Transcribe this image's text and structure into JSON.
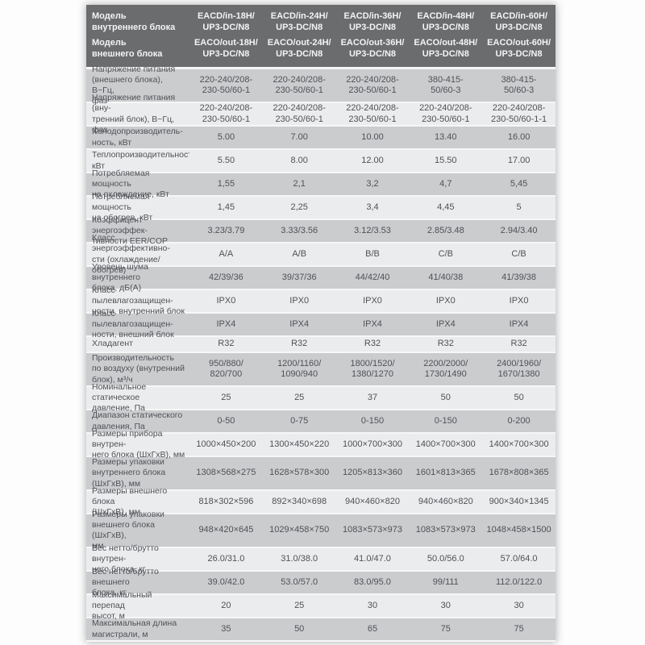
{
  "colors": {
    "page_bg": "#fdfdfd",
    "header_bg": "#6b6c6e",
    "header_fg": "#f4f4f4",
    "row_dark": "#cbccce",
    "row_light": "#ebeced",
    "text": "#505156",
    "separator": "#f7f7f8"
  },
  "table": {
    "header": [
      {
        "label": [
          "Модель",
          "внутреннего блока"
        ],
        "values": [
          [
            "EACD/in-18H/",
            "UP3-DC/N8"
          ],
          [
            "EACD/in-24H/",
            "UP3-DC/N8"
          ],
          [
            "EACD/in-36H/",
            "UP3-DC/N8"
          ],
          [
            "EACD/in-48H/",
            "UP3-DC/N8"
          ],
          [
            "EACD/in-60H/",
            "UP3-DC/N8"
          ]
        ]
      },
      {
        "label": [
          "Модель",
          "внешнего блока"
        ],
        "values": [
          [
            "EACO/out-18H/",
            "UP3-DC/N8"
          ],
          [
            "EACO/out-24H/",
            "UP3-DC/N8"
          ],
          [
            "EACO/out-36H/",
            "UP3-DC/N8"
          ],
          [
            "EACO/out-48H/",
            "UP3-DC/N8"
          ],
          [
            "EACO/out-60H/",
            "UP3-DC/N8"
          ]
        ]
      }
    ],
    "rows": [
      {
        "label": [
          "Напряжение питания",
          "(внешнего блока), В~Гц,",
          "фаз"
        ],
        "lines": 3,
        "values": [
          [
            "220-240/208-",
            "230-50/60-1"
          ],
          [
            "220-240/208-",
            "230-50/60-1"
          ],
          [
            "220-240/208-",
            "230-50/60-1"
          ],
          [
            "380-415-",
            "50/60-3"
          ],
          [
            "380-415-",
            "50/60-3"
          ]
        ]
      },
      {
        "label": [
          "Напряжение питания (вну-",
          "тренний блок), В~Гц, фаз"
        ],
        "lines": 2,
        "values": [
          [
            "220-240/208-",
            "230-50/60-1"
          ],
          [
            "220-240/208-",
            "230-50/60-1"
          ],
          [
            "220-240/208-",
            "230-50/60-1"
          ],
          [
            "220-240/208-",
            "230-50/60-1"
          ],
          [
            "220-240/208-",
            "230-50/60-1-1"
          ]
        ]
      },
      {
        "label": [
          "Холодопроизводитель-",
          "ность, кВт"
        ],
        "lines": 2,
        "values": [
          "5.00",
          "7.00",
          "10.00",
          "13.40",
          "16.00"
        ]
      },
      {
        "label": [
          "Теплопроизводительность,",
          "кВт"
        ],
        "lines": 2,
        "values": [
          "5.50",
          "8.00",
          "12.00",
          "15.50",
          "17.00"
        ]
      },
      {
        "label": [
          "Потребляемая мощность",
          "на охлаждение, кВт"
        ],
        "lines": 2,
        "values": [
          "1,55",
          "2,1",
          "3,2",
          "4,7",
          "5,45"
        ]
      },
      {
        "label": [
          "Потребляемая мощность",
          "на обогрев, кВт"
        ],
        "lines": 2,
        "values": [
          "1,45",
          "2,25",
          "3,4",
          "4,45",
          "5"
        ]
      },
      {
        "label": [
          "Коэффицент энергоэффек-",
          "тивности EER/COP"
        ],
        "lines": 2,
        "values": [
          "3.23/3.79",
          "3.33/3.56",
          "3.12/3.53",
          "2.85/3.48",
          "2.94/3.40"
        ]
      },
      {
        "label": [
          "Класс энергоэффективно-",
          "сти (охлаждение/обогрев)"
        ],
        "lines": 2,
        "values": [
          "A/A",
          "A/B",
          "B/B",
          "C/B",
          "C/B"
        ]
      },
      {
        "label": [
          "Уровень шума внутреннего",
          "блока, дБ(А)"
        ],
        "lines": 2,
        "values": [
          "42/39/36",
          "39/37/36",
          "44/42/40",
          "41/40/38",
          "41/39/38"
        ]
      },
      {
        "label": [
          "Класс пылевлагозащищен-",
          "ности, внутренний блок"
        ],
        "lines": 2,
        "values": [
          "IPX0",
          "IPX0",
          "IPX0",
          "IPX0",
          "IPX0"
        ]
      },
      {
        "label": [
          "Класс пылевлагозащищен-",
          "ности, внешний блок"
        ],
        "lines": 2,
        "values": [
          "IPX4",
          "IPX4",
          "IPX4",
          "IPX4",
          "IPX4"
        ]
      },
      {
        "label": [
          "Хладагент"
        ],
        "lines": 1,
        "values": [
          "R32",
          "R32",
          "R32",
          "R32",
          "R32"
        ]
      },
      {
        "label": [
          "Производительность",
          "по воздуху (внутренний",
          "блок), м³/ч"
        ],
        "lines": 3,
        "values": [
          [
            "950/880/",
            "820/700"
          ],
          [
            "1200/1160/",
            "1090/940"
          ],
          [
            "1800/1520/",
            "1380/1270"
          ],
          [
            "2200/2000/",
            "1730/1490"
          ],
          [
            "2400/1960/",
            "1670/1380"
          ]
        ]
      },
      {
        "label": [
          "Номинальное статическое",
          "давление, Па"
        ],
        "lines": 2,
        "values": [
          "25",
          "25",
          "37",
          "50",
          "50"
        ]
      },
      {
        "label": [
          "Диапазон статического",
          "давления, Па"
        ],
        "lines": 2,
        "values": [
          "0-50",
          "0-75",
          "0-150",
          "0-150",
          "0-200"
        ]
      },
      {
        "label": [
          "Размеры прибора внутрен-",
          "него блока (ШхГхВ), мм"
        ],
        "lines": 2,
        "values": [
          "1000×450×200",
          "1300×450×220",
          "1000×700×300",
          "1400×700×300",
          "1400×700×300"
        ]
      },
      {
        "label": [
          "Размеры упаковки",
          "внутреннего блока",
          "(ШхГхВ), мм"
        ],
        "lines": 3,
        "values": [
          "1308×568×275",
          "1628×578×300",
          "1205×813×360",
          "1601×813×365",
          "1678×808×365"
        ]
      },
      {
        "label": [
          "Размеры внешнего блока",
          "(ШхГхВ), мм"
        ],
        "lines": 2,
        "values": [
          "818×302×596",
          "892×340×698",
          "940×460×820",
          "940×460×820",
          "900×340×1345"
        ]
      },
      {
        "label": [
          "Размеры упаковки",
          "внешнего блока (ШхГхВ),",
          "мм"
        ],
        "lines": 3,
        "values": [
          "948×420×645",
          "1029×458×750",
          "1083×573×973",
          "1083×573×973",
          "1048×458×1500"
        ]
      },
      {
        "label": [
          "Вес нетто/брутто внутрен-",
          "него блока, кг"
        ],
        "lines": 2,
        "values": [
          "26.0/31.0",
          "31.0/38.0",
          "41.0/47.0",
          "50.0/56.0",
          "57.0/64.0"
        ]
      },
      {
        "label": [
          "Вес нетто/брутто внешнего",
          "блока, кг"
        ],
        "lines": 2,
        "values": [
          "39.0/42.0",
          "53.0/57.0",
          "83.0/95.0",
          "99/111",
          "112.0/122.0"
        ]
      },
      {
        "label": [
          "Максимальный перепад",
          "высот, м"
        ],
        "lines": 2,
        "values": [
          "20",
          "25",
          "30",
          "30",
          "30"
        ]
      },
      {
        "label": [
          "Максимальная длина",
          "магистрали, м"
        ],
        "lines": 2,
        "values": [
          "35",
          "50",
          "65",
          "75",
          "75"
        ]
      }
    ]
  }
}
